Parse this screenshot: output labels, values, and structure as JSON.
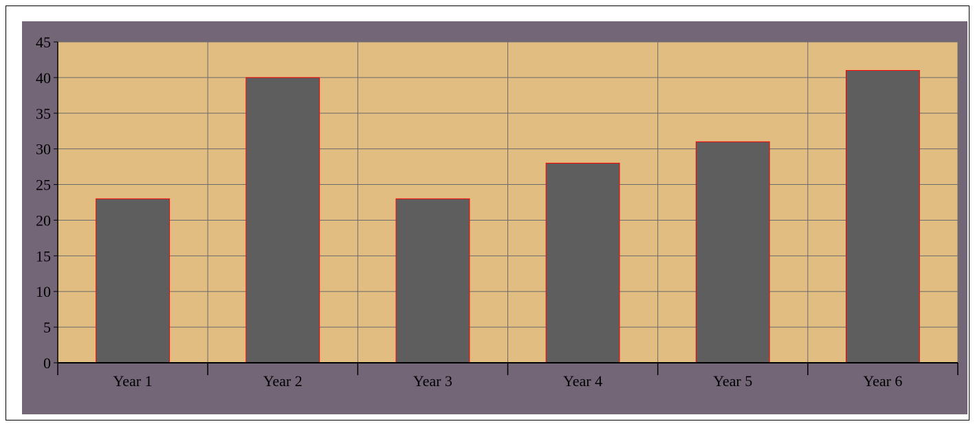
{
  "colors": {
    "chart_background": "#736677",
    "plot_background": "#e1bd81",
    "bar_fill": "#5e5e5e",
    "bar_stroke": "#ff0000",
    "gridline": "#6b6b6b",
    "axis": "#000000"
  },
  "chart_data": {
    "type": "bar",
    "categories": [
      "Year 1",
      "Year 2",
      "Year 3",
      "Year 4",
      "Year 5",
      "Year 6"
    ],
    "values": [
      23,
      40,
      23,
      28,
      31,
      41
    ],
    "title": "",
    "xlabel": "",
    "ylabel": "",
    "ylim": [
      0,
      45
    ],
    "yticks": [
      "0",
      "5",
      "10",
      "15",
      "20",
      "25",
      "30",
      "35",
      "40",
      "45"
    ],
    "grid": true,
    "legend": "none"
  }
}
